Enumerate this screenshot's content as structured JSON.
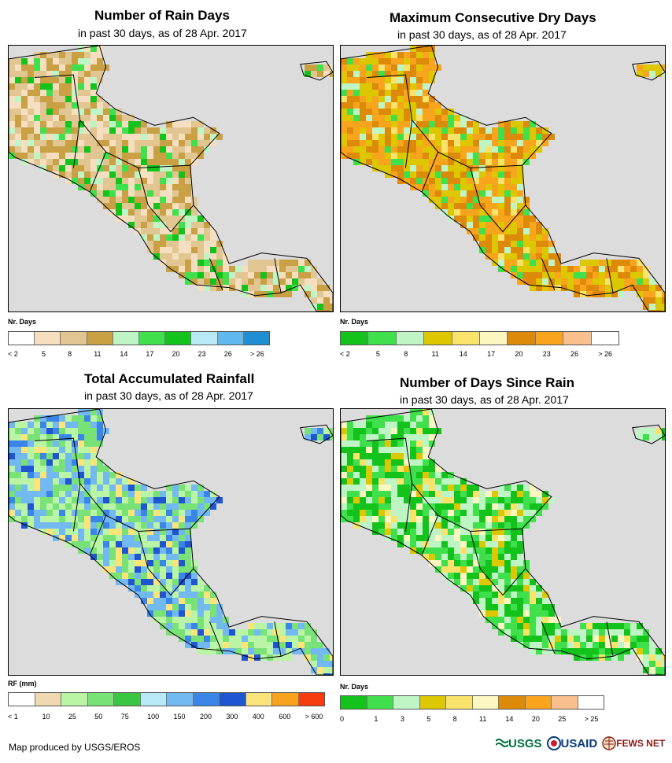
{
  "panels": [
    {
      "id": "rain-days",
      "title": "Number of Rain Days",
      "subtitle": "in past 30 days, as of 28 Apr. 2017",
      "legend_title": "Nr. Days",
      "legend_colors": [
        "#ffffff",
        "#f5dfc0",
        "#e2c691",
        "#c9a043",
        "#bff5c5",
        "#3fe04c",
        "#14c21c",
        "#b8e9f7",
        "#60b9ee",
        "#1f8fd4"
      ],
      "legend_ticks": [
        "< 2",
        "5",
        "8",
        "11",
        "14",
        "17",
        "20",
        "23",
        "26",
        "> 26"
      ],
      "dominant": [
        "#e2c691",
        "#f5dfc0",
        "#c9a043"
      ],
      "accents": [
        "#3fe04c",
        "#14c21c",
        "#bff5c5"
      ]
    },
    {
      "id": "max-dry-days",
      "title": "Maximum Consecutive Dry Days",
      "subtitle": "in past 30 days, as of 28 Apr. 2017",
      "legend_title": "Nr. Days",
      "legend_colors": [
        "#14c21c",
        "#3fe04c",
        "#bff5c5",
        "#dcc700",
        "#f9e36a",
        "#fcf6c0",
        "#dd8a0a",
        "#f8a41d",
        "#f9c08d",
        "#ffffff"
      ],
      "legend_ticks": [
        "< 2",
        "5",
        "8",
        "11",
        "14",
        "17",
        "20",
        "23",
        "26",
        "> 26"
      ],
      "dominant": [
        "#dd8a0a",
        "#f8a41d",
        "#dcc700"
      ],
      "accents": [
        "#f9e36a",
        "#bff5c5",
        "#3fe04c"
      ]
    },
    {
      "id": "total-rainfall",
      "title": "Total Accumulated Rainfall",
      "subtitle": "in past 30 days, as of 28 Apr. 2017",
      "legend_title": "RF (mm)",
      "legend_colors": [
        "#ffffff",
        "#f0d8b0",
        "#b9f5a4",
        "#79e277",
        "#3ac641",
        "#b8e9f7",
        "#72b9f2",
        "#3a86e8",
        "#1f55d0",
        "#fbe47a",
        "#f9a21d",
        "#f53c10"
      ],
      "legend_ticks": [
        "< 1",
        "10",
        "25",
        "50",
        "75",
        "100",
        "150",
        "200",
        "300",
        "400",
        "600",
        "> 600"
      ],
      "dominant": [
        "#79e277",
        "#b9f5a4",
        "#72b9f2"
      ],
      "accents": [
        "#3a86e8",
        "#1f55d0",
        "#fbe47a"
      ]
    },
    {
      "id": "days-since-rain",
      "title": "Number of Days Since Rain",
      "subtitle": "in past 30 days, as of 28 Apr. 2017",
      "legend_title": "Nr. Days",
      "legend_colors": [
        "#14c21c",
        "#3fe04c",
        "#bff5c5",
        "#dcc700",
        "#f9e36a",
        "#fcf6c0",
        "#dd8a0a",
        "#f8a41d",
        "#f9c08d",
        "#ffffff"
      ],
      "legend_ticks": [
        "0",
        "1",
        "3",
        "5",
        "8",
        "11",
        "14",
        "20",
        "25",
        "> 25"
      ],
      "dominant": [
        "#14c21c",
        "#3fe04c",
        "#bff5c5"
      ],
      "accents": [
        "#f9e36a",
        "#dcc700",
        "#fcf6c0"
      ]
    }
  ],
  "footer": "Map produced by USGS/EROS",
  "logos": {
    "usgs": "USGS",
    "usaid": "USAID",
    "fews": "FEWS NET"
  }
}
